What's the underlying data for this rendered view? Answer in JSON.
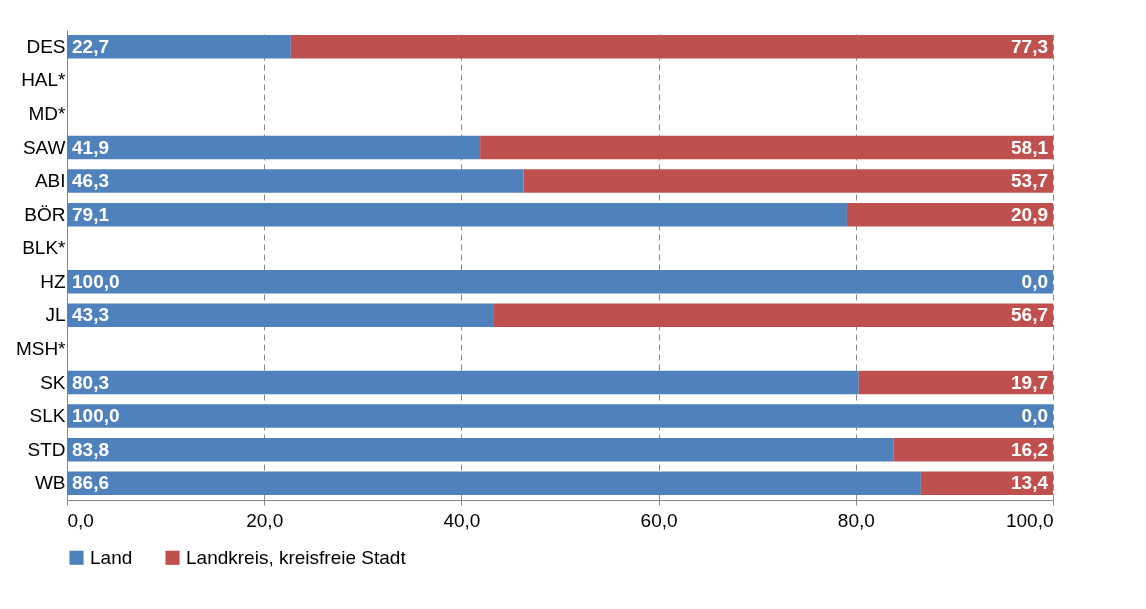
{
  "chart_data": {
    "type": "bar",
    "orientation": "horizontal",
    "stacked": true,
    "categories": [
      "DES",
      "HAL*",
      "MD*",
      "SAW",
      "ABI",
      "BÖR",
      "BLK*",
      "HZ",
      "JL",
      "MSH*",
      "SK",
      "SLK",
      "STD",
      "WB"
    ],
    "series": [
      {
        "name": "Land",
        "color": "#4f81bd",
        "values": [
          22.7,
          null,
          null,
          41.9,
          46.3,
          79.1,
          null,
          100.0,
          43.3,
          null,
          80.3,
          100.0,
          83.8,
          86.6
        ],
        "value_labels": [
          "22,7",
          null,
          null,
          "41,9",
          "46,3",
          "79,1",
          null,
          "100,0",
          "43,3",
          null,
          "80,3",
          "100,0",
          "83,8",
          "86,6"
        ]
      },
      {
        "name": "Landkreis, kreisfreie Stadt",
        "color": "#c0504d",
        "values": [
          77.3,
          null,
          null,
          58.1,
          53.7,
          20.9,
          null,
          0.0,
          56.7,
          null,
          19.7,
          0.0,
          16.2,
          13.4
        ],
        "value_labels": [
          "77,3",
          null,
          null,
          "58,1",
          "53,7",
          "20,9",
          null,
          "0,0",
          "56,7",
          null,
          "19,7",
          "0,0",
          "16,2",
          "13,4"
        ]
      }
    ],
    "xlim": [
      0,
      100
    ],
    "xticks": [
      {
        "value": 0,
        "label": "0,0"
      },
      {
        "value": 20,
        "label": "20,0"
      },
      {
        "value": 40,
        "label": "40,0"
      },
      {
        "value": 60,
        "label": "60,0"
      },
      {
        "value": 80,
        "label": "80,0"
      },
      {
        "value": 100,
        "label": "100,0"
      }
    ],
    "grid": "x",
    "legend": "bottom"
  }
}
